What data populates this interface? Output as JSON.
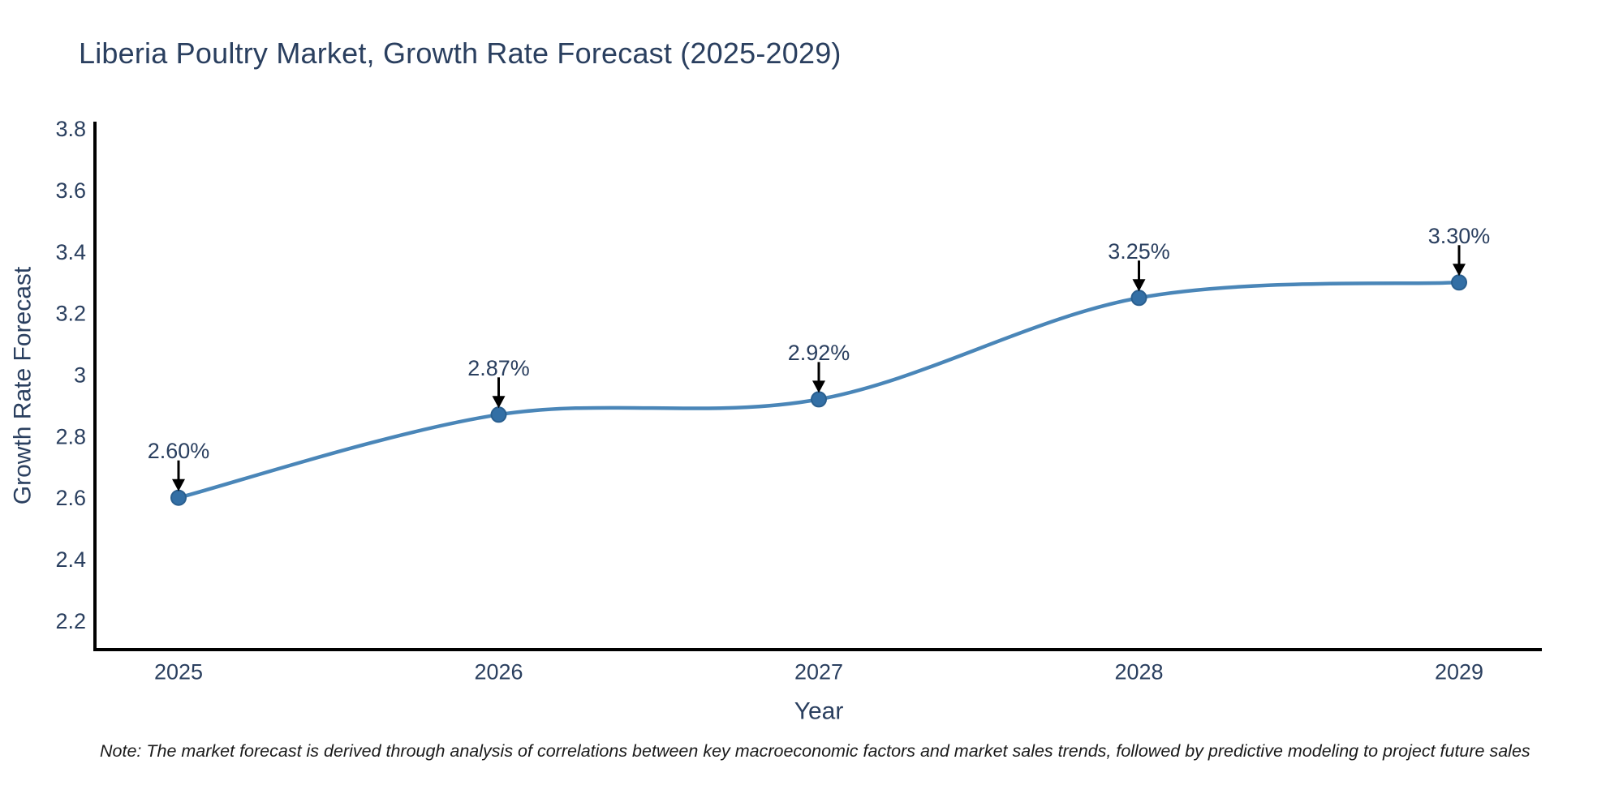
{
  "title": "Liberia Poultry Market, Growth Rate Forecast (2025-2029)",
  "note": "Note: The market forecast is derived through analysis of correlations between key macroeconomic factors and market sales trends, followed by predictive modeling to project future sales",
  "chart_data": {
    "type": "line",
    "title": "Liberia Poultry Market, Growth Rate Forecast (2025-2029)",
    "xlabel": "Year",
    "ylabel": "Growth Rate Forecast",
    "categories": [
      "2025",
      "2026",
      "2027",
      "2028",
      "2029"
    ],
    "values": [
      2.6,
      2.87,
      2.92,
      3.25,
      3.3
    ],
    "point_labels": [
      "2.60%",
      "2.87%",
      "2.92%",
      "3.25%",
      "3.30%"
    ],
    "ytick_values": [
      2.2,
      2.4,
      2.6,
      2.8,
      3.0,
      3.2,
      3.4,
      3.6,
      3.8
    ],
    "ytick_labels": [
      "2.2",
      "2.4",
      "2.6",
      "2.8",
      "3",
      "3.2",
      "3.4",
      "3.6",
      "3.8"
    ],
    "ylim": [
      2.106,
      3.823
    ],
    "line_shape": "spline",
    "grid": false,
    "legend": "none",
    "annotations_have_arrows": true,
    "colors": {
      "line": "#4a86b8",
      "marker": "#336fa5",
      "marker_edge": "#2a5f8f",
      "text": "#2a3f5f",
      "axis": "#000000",
      "arrow": "#000000",
      "background": "#ffffff"
    }
  }
}
